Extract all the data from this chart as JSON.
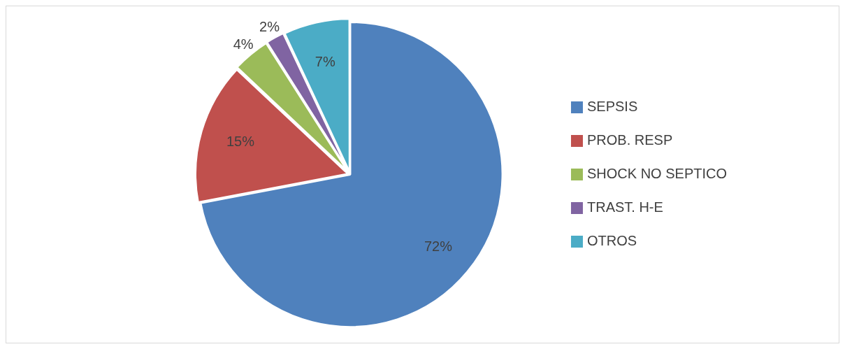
{
  "chart_data": {
    "type": "pie",
    "categories": [
      "SEPSIS",
      "PROB. RESP",
      "SHOCK NO SEPTICO",
      "TRAST. H-E",
      "OTROS"
    ],
    "values": [
      72,
      15,
      4,
      2,
      7
    ],
    "colors": [
      "#4f81bd",
      "#c0504d",
      "#9bbb59",
      "#8064a2",
      "#4bacc6"
    ],
    "value_labels": [
      "72%",
      "15%",
      "4%",
      "2%",
      "7%"
    ],
    "legend": "right"
  }
}
